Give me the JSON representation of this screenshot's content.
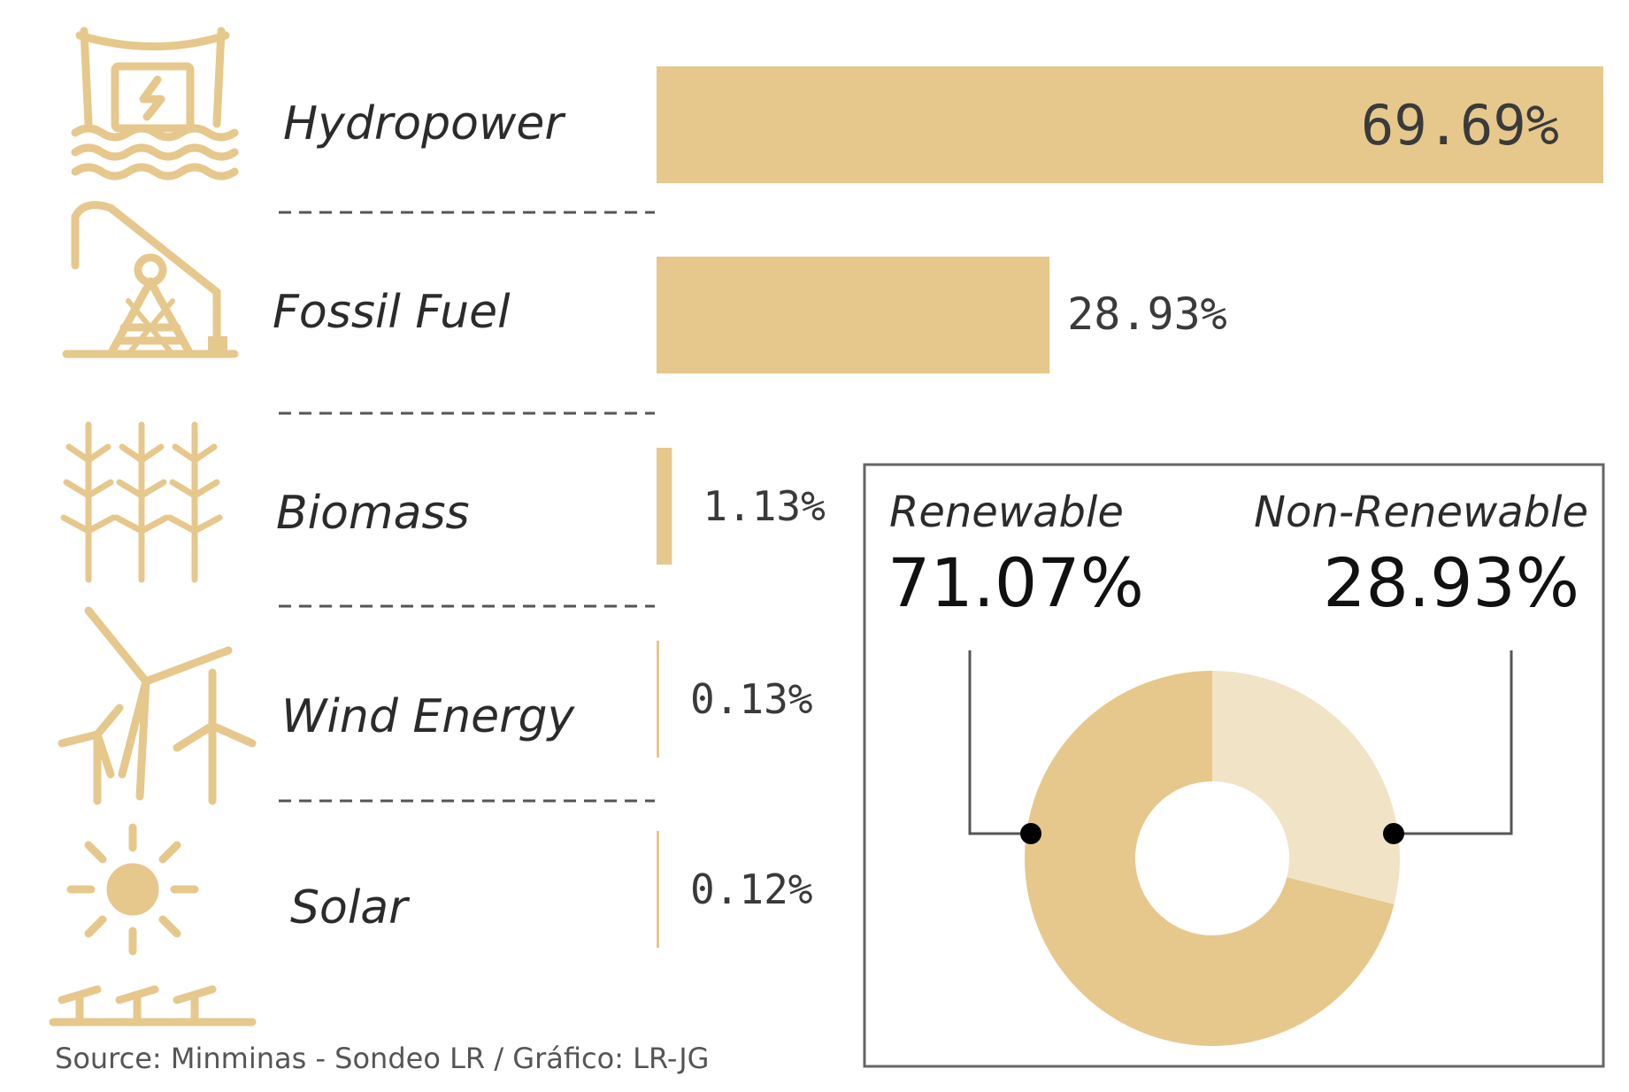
{
  "colors": {
    "bar": "#e6c88c",
    "donut_renewable": "#e6c88c",
    "donut_non_renewable": "#f1e3c6",
    "icon": "#e6c88c",
    "separator": "#555555",
    "box_border": "#666666"
  },
  "icons": [
    "hydropower-dam-icon",
    "oil-pump-icon",
    "crop-icon",
    "wind-turbine-icon",
    "solar-sun-icon"
  ],
  "chart_data": [
    {
      "type": "bar",
      "orientation": "horizontal",
      "categories": [
        "Hydropower",
        "Fossil Fuel",
        "Biomass",
        "Wind Energy",
        "Solar"
      ],
      "values": [
        69.69,
        28.93,
        1.13,
        0.13,
        0.12
      ],
      "value_labels": [
        "69.69%",
        "28.93%",
        "1.13%",
        "0.13%",
        "0.12%"
      ],
      "xlim": [
        0,
        69.69
      ],
      "grid": false
    },
    {
      "type": "pie",
      "donut": true,
      "categories": [
        "Renewable",
        "Non-Renewable"
      ],
      "values": [
        71.07,
        28.93
      ],
      "value_labels": [
        "71.07%",
        "28.93%"
      ]
    }
  ],
  "source": "Source: Minminas - Sondeo LR / Gráfico: LR-JG"
}
